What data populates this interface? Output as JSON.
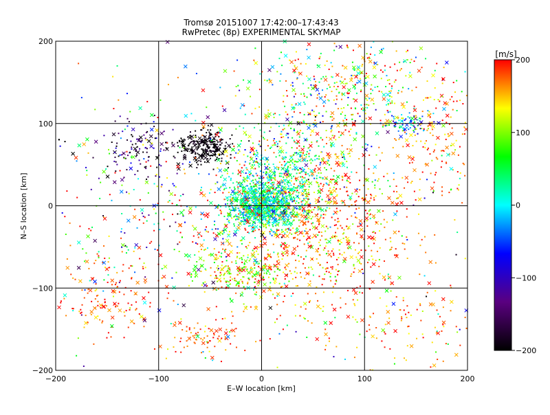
{
  "chart_data": {
    "type": "scatter",
    "title": "Tromsø 20151007 17:42:00–17:43:43",
    "subtitle": "RwPretec (8p) EXPERIMENTAL SKYMAP",
    "xlabel": "E–W location [km]",
    "ylabel": "N–S location [km]",
    "xlim": [
      -200,
      200
    ],
    "ylim": [
      -200,
      200
    ],
    "xticks": [
      -200,
      -100,
      0,
      100,
      200
    ],
    "yticks": [
      -200,
      -100,
      0,
      100,
      200
    ],
    "x_tick_labels": [
      "−200",
      "−100",
      "0",
      "100",
      "200"
    ],
    "y_tick_labels": [
      "−200",
      "−100",
      "0",
      "100",
      "200"
    ],
    "grid": true,
    "markers": [
      "dot",
      "x"
    ],
    "clusters": [
      {
        "x": 0,
        "y": 0,
        "sx": 18,
        "sy": 14,
        "n": 900,
        "v": 20,
        "vs": 40
      },
      {
        "x": -55,
        "y": 72,
        "sx": 12,
        "sy": 10,
        "n": 250,
        "v": -195,
        "vs": 8
      },
      {
        "x": 50,
        "y": -20,
        "sx": 50,
        "sy": 60,
        "n": 900,
        "v": 170,
        "vs": 40
      },
      {
        "x": 25,
        "y": 40,
        "sx": 30,
        "sy": 25,
        "n": 450,
        "v": 40,
        "vs": 60
      },
      {
        "x": -20,
        "y": -80,
        "sx": 22,
        "sy": 15,
        "n": 220,
        "v": 120,
        "vs": 50
      },
      {
        "x": 140,
        "y": 100,
        "sx": 12,
        "sy": 6,
        "n": 80,
        "v": -30,
        "vs": 70
      },
      {
        "x": -150,
        "y": -110,
        "sx": 25,
        "sy": 25,
        "n": 130,
        "v": 180,
        "vs": 25
      },
      {
        "x": 110,
        "y": 150,
        "sx": 40,
        "sy": 30,
        "n": 200,
        "v": 130,
        "vs": 90
      },
      {
        "x": -120,
        "y": 70,
        "sx": 25,
        "sy": 20,
        "n": 130,
        "v": -150,
        "vs": 60
      },
      {
        "x": 170,
        "y": 90,
        "sx": 25,
        "sy": 40,
        "n": 150,
        "v": 170,
        "vs": 30
      },
      {
        "x": 50,
        "y": 130,
        "sx": 40,
        "sy": 30,
        "n": 200,
        "v": 70,
        "vs": 100
      },
      {
        "x": -60,
        "y": -160,
        "sx": 20,
        "sy": 12,
        "n": 80,
        "v": 180,
        "vs": 20
      },
      {
        "x": 140,
        "y": -150,
        "sx": 40,
        "sy": 30,
        "n": 100,
        "v": 170,
        "vs": 40
      },
      {
        "x": -100,
        "y": -20,
        "sx": 60,
        "sy": 50,
        "n": 200,
        "v": 60,
        "vs": 120
      },
      {
        "x": 0,
        "y": 0,
        "sx": 140,
        "sy": 120,
        "n": 500,
        "v": 80,
        "vs": 120
      }
    ],
    "colorbar": {
      "label": "[m/s]",
      "range": [
        -200,
        200
      ],
      "ticks": [
        -200,
        -100,
        0,
        100,
        200
      ],
      "tick_labels": [
        "−200",
        "−100",
        "0",
        "100",
        "200"
      ],
      "colors": [
        "#000000",
        "#5a0080",
        "#0000ff",
        "#00ffff",
        "#00ff00",
        "#ffff00",
        "#ff0000"
      ]
    }
  }
}
